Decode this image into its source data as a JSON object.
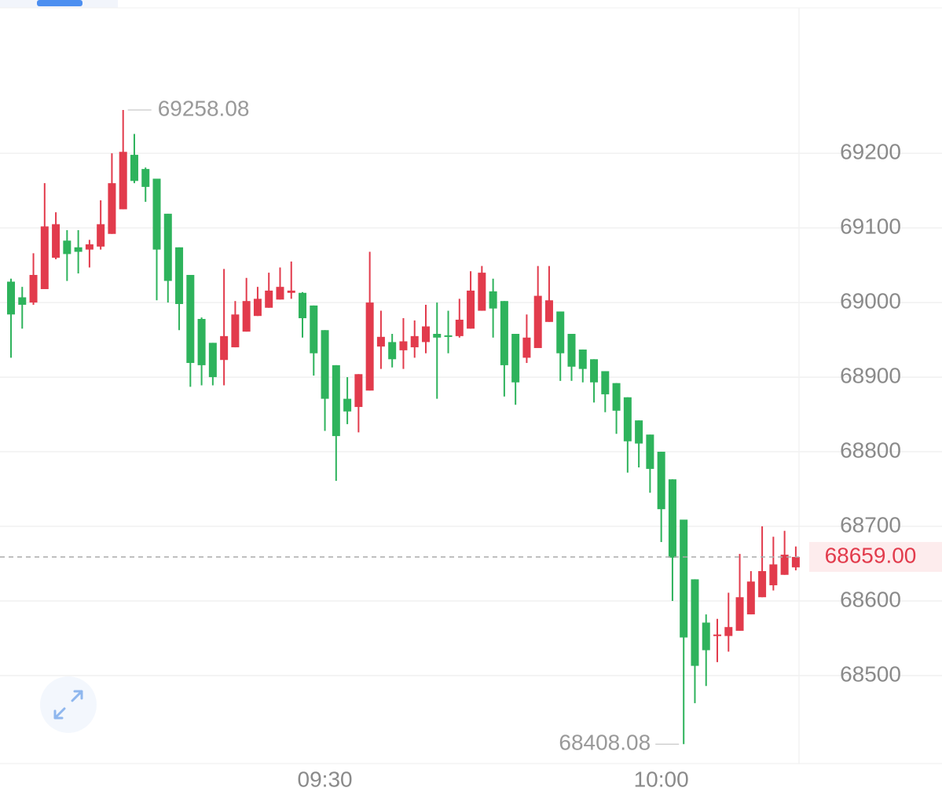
{
  "chart_data": {
    "type": "candlestick",
    "categories": [
      null,
      null,
      null,
      null,
      null,
      null,
      null,
      null,
      null,
      null,
      null,
      null,
      null,
      null,
      null,
      null,
      null,
      null,
      null,
      null,
      null,
      null,
      null,
      null,
      null,
      null,
      null,
      null,
      "09:30",
      null,
      null,
      null,
      null,
      null,
      null,
      null,
      null,
      null,
      null,
      null,
      null,
      null,
      null,
      null,
      null,
      null,
      null,
      null,
      null,
      null,
      null,
      null,
      null,
      null,
      null,
      null,
      null,
      null,
      "10:00",
      null,
      null,
      null,
      null,
      null,
      null,
      null,
      null,
      null,
      null,
      null,
      null
    ],
    "open": [
      69028,
      69007,
      69000,
      69018,
      69060,
      69083,
      69074,
      69071,
      69075,
      69092,
      69125,
      69198,
      69179,
      69166,
      69119,
      69074,
      69037,
      68978,
      68946,
      68923,
      68940,
      68961,
      68982,
      68993,
      69004,
      69013,
      69013,
      68996,
      68963,
      68916,
      68871,
      68860,
      68882,
      68941,
      68947,
      68936,
      68940,
      68947,
      68958,
      68956,
      68955,
      68965,
      68989,
      69015,
      69002,
      68958,
      68926,
      68939,
      68974,
      68988,
      68958,
      68937,
      68924,
      68908,
      68892,
      68873,
      68842,
      68823,
      68800,
      68763,
      68709,
      68629,
      68571,
      68553,
      68553,
      68560,
      68582,
      68605,
      68621,
      68635,
      68645
    ],
    "high": [
      69032,
      69021,
      69066,
      69160,
      69121,
      69097,
      69097,
      69084,
      69137,
      69200,
      69258.08,
      69226,
      69181,
      69166,
      69119,
      69074,
      69037,
      68980,
      68946,
      69045,
      69002,
      69033,
      69021,
      69040,
      69047,
      69055,
      69014,
      68996,
      68963,
      68916,
      68900,
      68904,
      69068,
      68989,
      68958,
      68979,
      68976,
      68997,
      69000,
      68989,
      69005,
      69042,
      69049,
      69032,
      69002,
      68958,
      68984,
      69049,
      69049,
      68988,
      68958,
      68937,
      68924,
      68908,
      68892,
      68873,
      68842,
      68823,
      68800,
      68763,
      68709,
      68629,
      68582,
      68576,
      68611,
      68663,
      68640,
      68700,
      68686,
      68694,
      68673
    ],
    "low": [
      68926,
      68965,
      68997,
      69018,
      69058,
      69029,
      69039,
      69047,
      69071,
      69092,
      69125,
      69160,
      69135,
      69003,
      69000,
      68963,
      68887,
      68889,
      68889,
      68889,
      68940,
      68961,
      68982,
      68993,
      69004,
      69005,
      68953,
      68902,
      68828,
      68761,
      68837,
      68826,
      68882,
      68911,
      68913,
      68911,
      68926,
      68932,
      68871,
      68932,
      68953,
      68965,
      68989,
      68953,
      68874,
      68863,
      68919,
      68939,
      68974,
      68895,
      68895,
      68893,
      68866,
      68853,
      68824,
      68772,
      68779,
      68745,
      68679,
      68600,
      68408.08,
      68463,
      68486,
      68518,
      68532,
      68560,
      68582,
      68605,
      68614,
      68635,
      68641
    ],
    "close": [
      68984,
      68997,
      69037,
      69102,
      69105,
      69065,
      69068,
      69078,
      69105,
      69160,
      69202,
      69163,
      69155,
      69071,
      69029,
      68998,
      68919,
      68916,
      68900,
      68955,
      68984,
      69002,
      69005,
      69016,
      69021,
      69016,
      68979,
      68932,
      68871,
      68821,
      68854,
      68904,
      69000,
      68954,
      68924,
      68948,
      68955,
      68968,
      68953,
      68954,
      68977,
      69016,
      69040,
      68992,
      68916,
      68893,
      68953,
      69009,
      69003,
      68932,
      68914,
      68911,
      68893,
      68877,
      68855,
      68814,
      68811,
      68777,
      68723,
      68658,
      68551,
      68513,
      68534,
      68555,
      68565,
      68605,
      68626,
      68640,
      68649,
      68662,
      68659
    ],
    "up_color": "#e23b4c",
    "down_color": "#2eb35c",
    "ylim": [
      68382,
      69395
    ],
    "yticks": [
      68500,
      68600,
      68700,
      68800,
      68900,
      69000,
      69100,
      69200
    ],
    "grid": true,
    "last_price": {
      "value": 68659,
      "label": "68659.00"
    },
    "high_marker_index": 10,
    "low_marker_index": 60
  }
}
